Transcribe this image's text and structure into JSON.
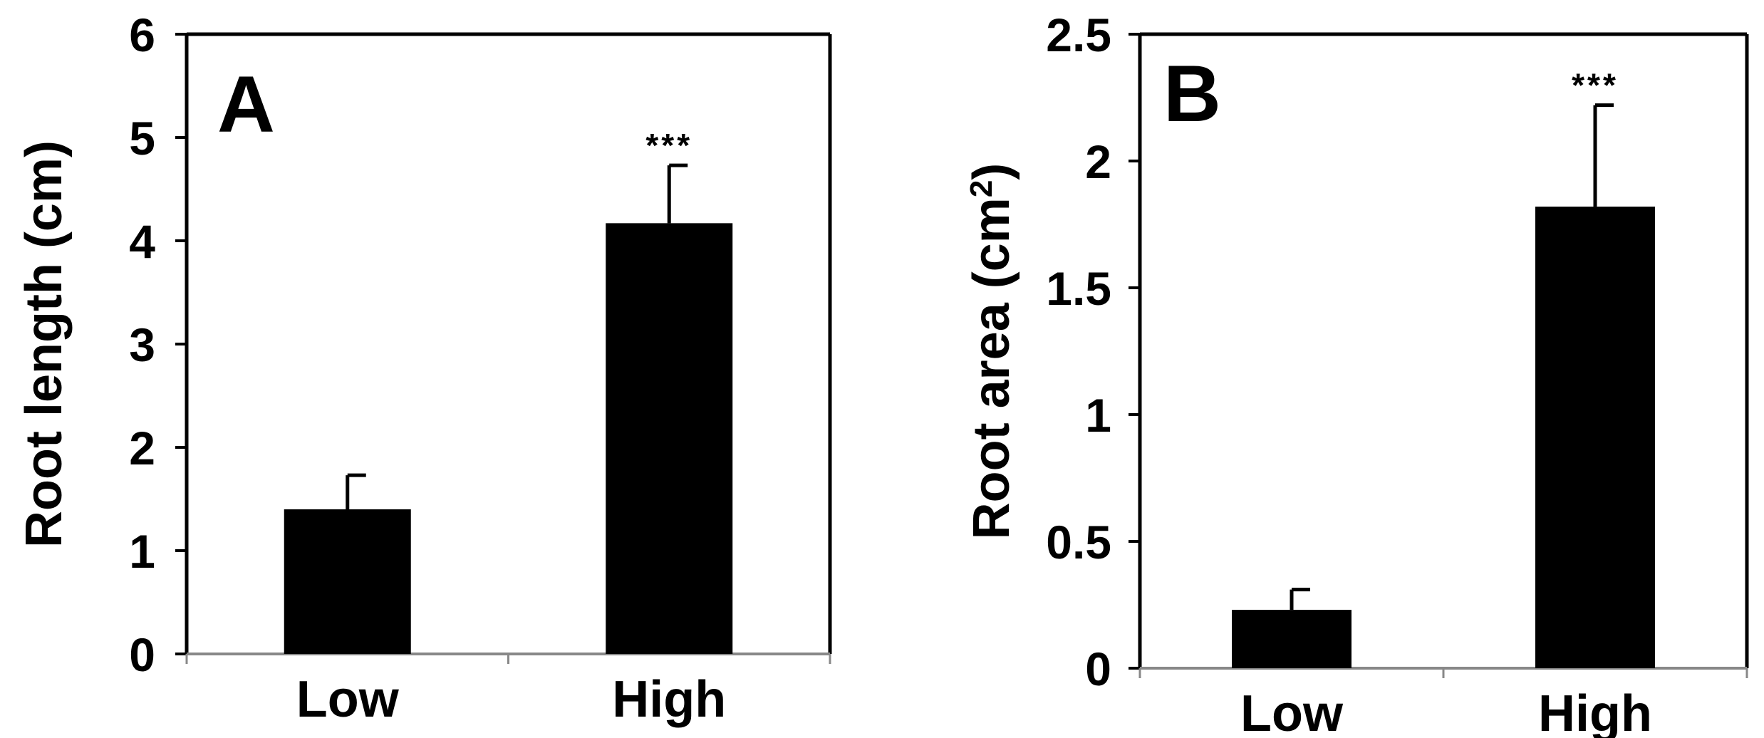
{
  "chart_data": [
    {
      "type": "bar",
      "panel_label": "A",
      "categories": [
        "Low",
        "High"
      ],
      "values": [
        1.4,
        4.17
      ],
      "error_bars": [
        0.33,
        0.56
      ],
      "annotations": [
        "",
        "***"
      ],
      "ylabel": "Root length (cm)",
      "ylim": [
        0,
        6
      ],
      "yticks": [
        0,
        1,
        2,
        3,
        4,
        5,
        6
      ],
      "ytick_labels": [
        "0",
        "1",
        "2",
        "3",
        "4",
        "5",
        "6"
      ],
      "grid": false,
      "bar_color": "#000000"
    },
    {
      "type": "bar",
      "panel_label": "B",
      "categories": [
        "Low",
        "High"
      ],
      "values": [
        0.23,
        1.82
      ],
      "error_bars": [
        0.08,
        0.4
      ],
      "annotations": [
        "",
        "***"
      ],
      "ylabel": "Root area (cm",
      "ylabel_superscript": "2",
      "ylabel_suffix": ")",
      "ylim": [
        0,
        2.5
      ],
      "yticks": [
        0,
        0.5,
        1,
        1.5,
        2,
        2.5
      ],
      "ytick_labels": [
        "0",
        "0.5",
        "1",
        "1.5",
        "2",
        "2.5"
      ],
      "grid": false,
      "bar_color": "#000000"
    }
  ]
}
